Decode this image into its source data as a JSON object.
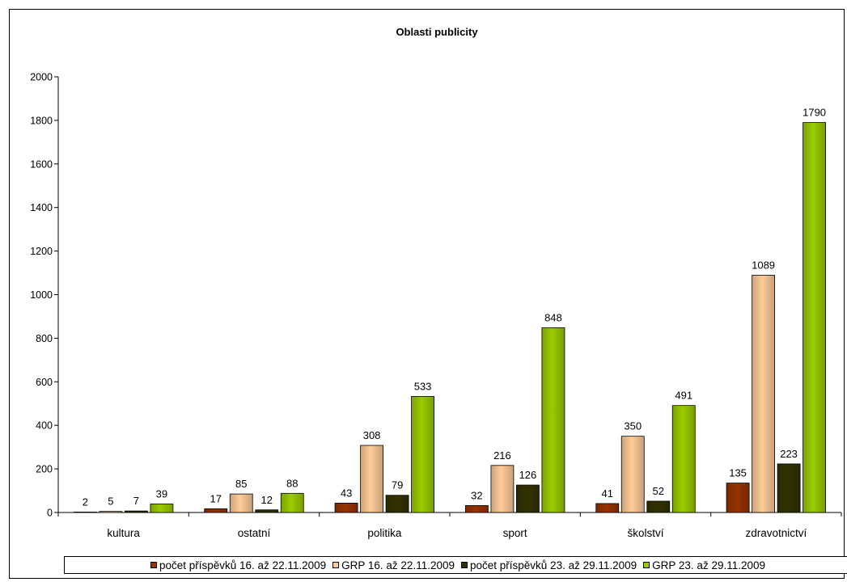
{
  "chart_data": {
    "type": "bar",
    "title": "Oblasti publicity",
    "xlabel": "",
    "ylabel": "",
    "ylim": [
      0,
      2000
    ],
    "yticks": [
      "0",
      "200",
      "400",
      "600",
      "800",
      "1000",
      "1200",
      "1400",
      "1600",
      "1800",
      "2000"
    ],
    "categories": [
      "kultura",
      "ostatní",
      "politika",
      "sport",
      "školství",
      "zdravotnictví"
    ],
    "series": [
      {
        "name": "počet příspěvků 16. až 22.11.2009",
        "color": "#993300",
        "values": [
          2,
          17,
          43,
          32,
          41,
          135
        ]
      },
      {
        "name": "GRP 16. až 22.11.2009",
        "color": "#FFCC99",
        "values": [
          5,
          85,
          308,
          216,
          350,
          1089
        ]
      },
      {
        "name": "počet příspěvků 23. až 29.11.2009",
        "color": "#333300",
        "values": [
          7,
          12,
          79,
          126,
          52,
          223
        ]
      },
      {
        "name": "GRP 23. až 29.11.2009",
        "color": "#99CC00",
        "values": [
          39,
          88,
          533,
          848,
          491,
          1790
        ]
      }
    ],
    "grid": false,
    "legend_position": "bottom",
    "data_labels": true
  }
}
